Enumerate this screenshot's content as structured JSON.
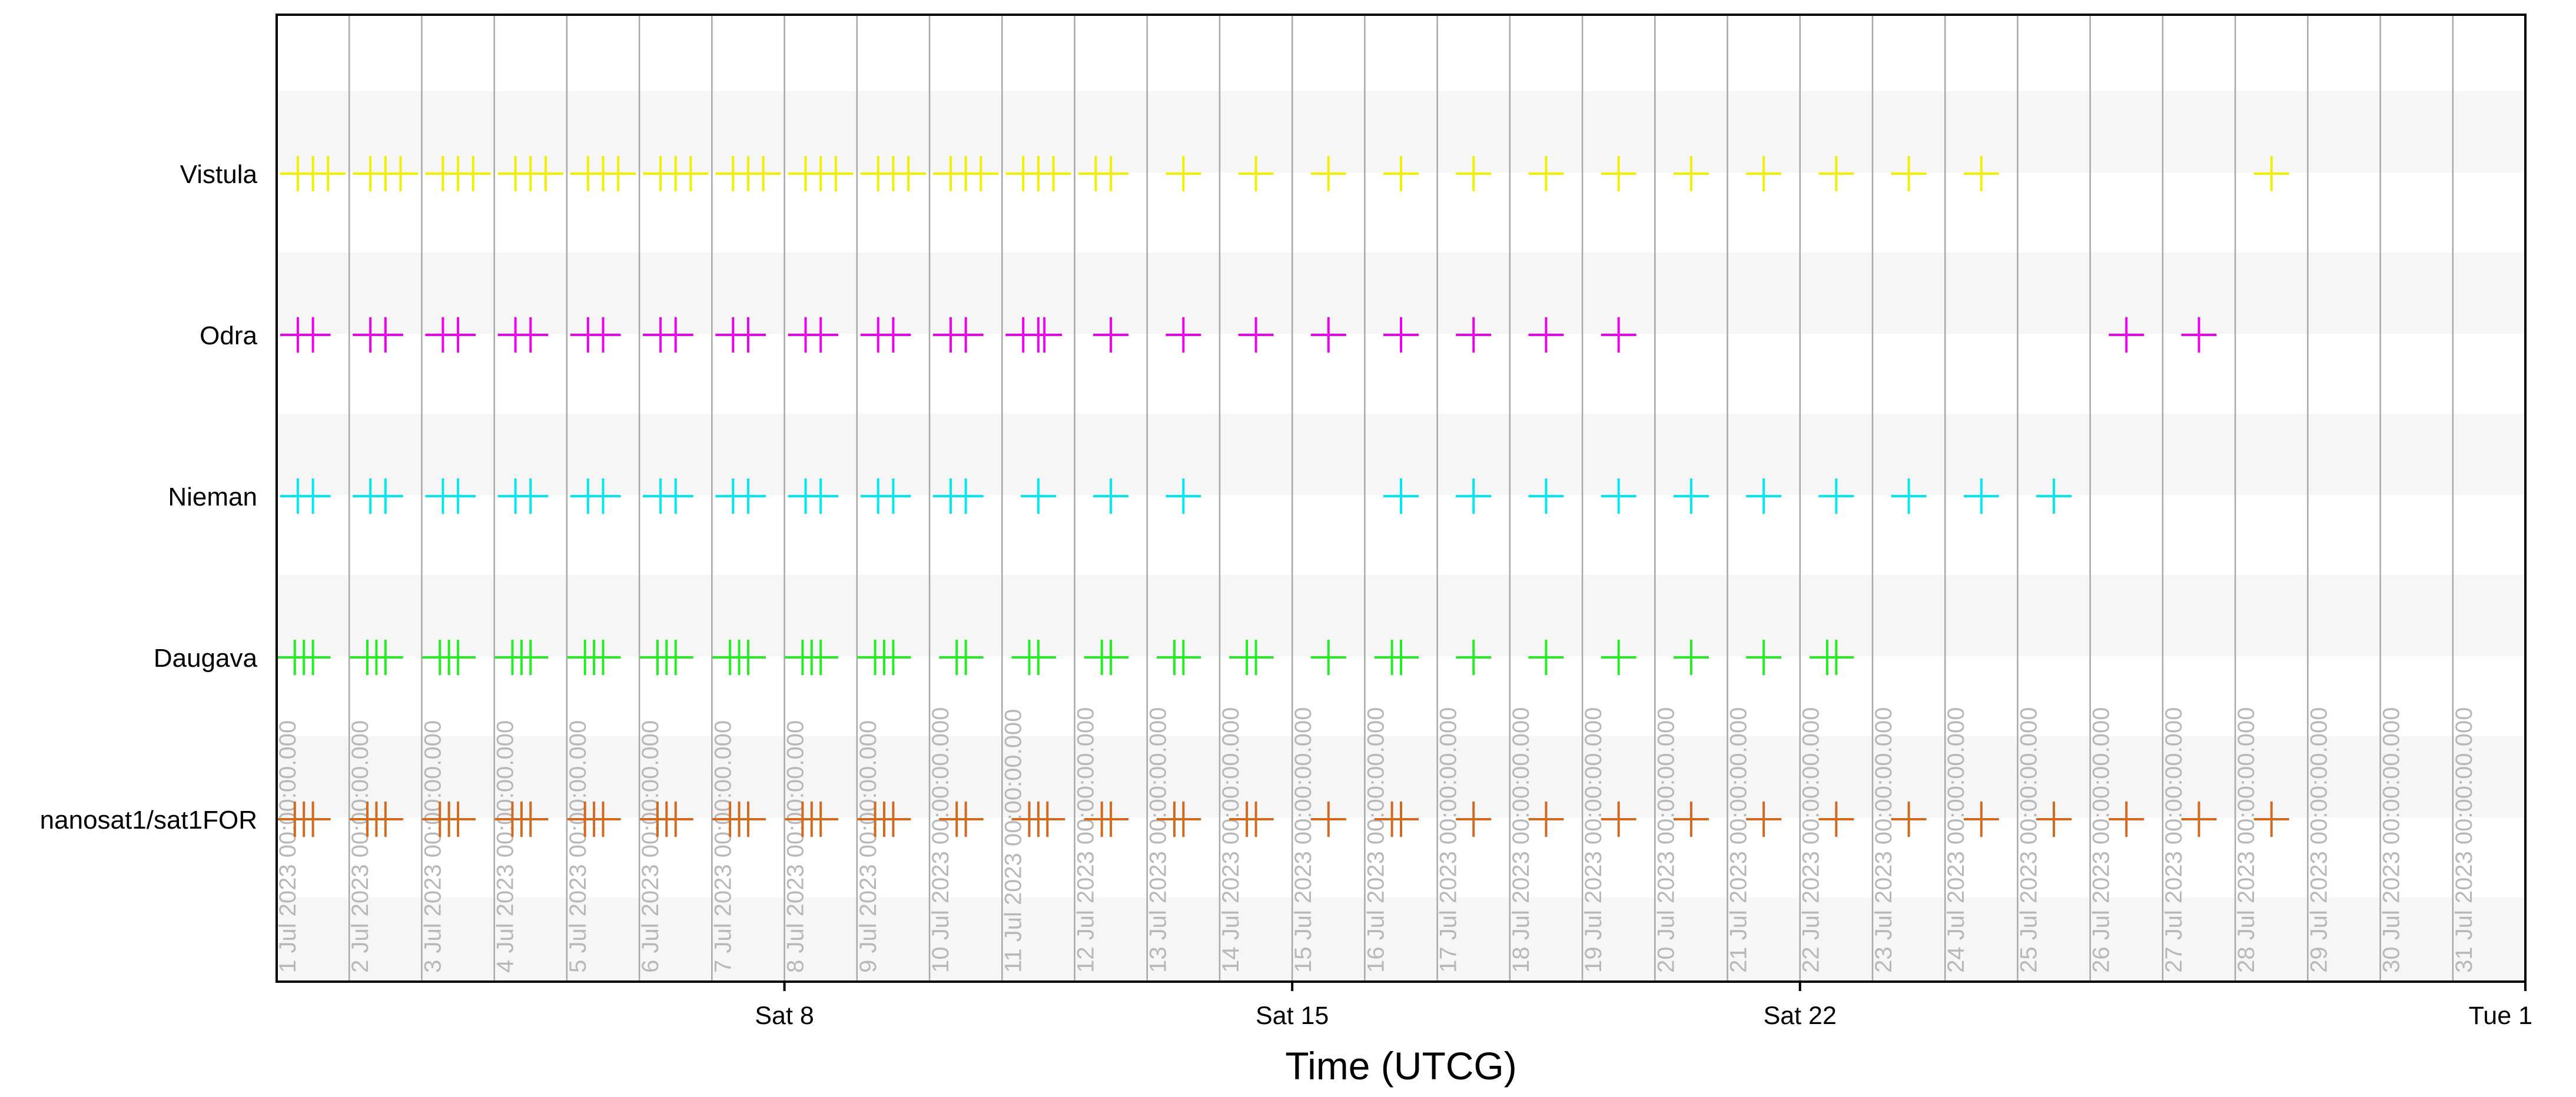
{
  "chart_data": {
    "type": "scatter",
    "xlabel": "Time (UTCG)",
    "x_range": [
      "2023-07-01",
      "2023-08-01"
    ],
    "x_ticks": [
      {
        "date": "2023-07-08",
        "label": "Sat 8"
      },
      {
        "date": "2023-07-15",
        "label": "Sat 15"
      },
      {
        "date": "2023-07-22",
        "label": "Sat 22"
      },
      {
        "date": "2023-08-01",
        "label": "Tue 1"
      }
    ],
    "day_labels": [
      "1 Jul 2023 00:00:00.000",
      "2 Jul 2023 00:00:00.000",
      "3 Jul 2023 00:00:00.000",
      "4 Jul 2023 00:00:00.000",
      "5 Jul 2023 00:00:00.000",
      "6 Jul 2023 00:00:00.000",
      "7 Jul 2023 00:00:00.000",
      "8 Jul 2023 00:00:00.000",
      "9 Jul 2023 00:00:00.000",
      "10 Jul 2023 00:00:00.000",
      "11 Jul 2023 00:00:00.000",
      "12 Jul 2023 00:00:00.000",
      "13 Jul 2023 00:00:00.000",
      "14 Jul 2023 00:00:00.000",
      "15 Jul 2023 00:00:00.000",
      "16 Jul 2023 00:00:00.000",
      "17 Jul 2023 00:00:00.000",
      "18 Jul 2023 00:00:00.000",
      "19 Jul 2023 00:00:00.000",
      "20 Jul 2023 00:00:00.000",
      "21 Jul 2023 00:00:00.000",
      "22 Jul 2023 00:00:00.000",
      "23 Jul 2023 00:00:00.000",
      "24 Jul 2023 00:00:00.000",
      "25 Jul 2023 00:00:00.000",
      "26 Jul 2023 00:00:00.000",
      "27 Jul 2023 00:00:00.000",
      "28 Jul 2023 00:00:00.000",
      "29 Jul 2023 00:00:00.000",
      "30 Jul 2023 00:00:00.000",
      "31 Jul 2023 00:00:00.000"
    ],
    "grid": true,
    "series": [
      {
        "name": "Vistula",
        "color": "#f0f000",
        "points": [
          "2023-07-01T07:00",
          "2023-07-01T12:00",
          "2023-07-01T17:00",
          "2023-07-02T07:00",
          "2023-07-02T12:00",
          "2023-07-02T17:00",
          "2023-07-03T07:00",
          "2023-07-03T12:00",
          "2023-07-03T17:00",
          "2023-07-04T07:00",
          "2023-07-04T12:00",
          "2023-07-04T17:00",
          "2023-07-05T07:00",
          "2023-07-05T12:00",
          "2023-07-05T17:00",
          "2023-07-06T07:00",
          "2023-07-06T12:00",
          "2023-07-06T17:00",
          "2023-07-07T07:00",
          "2023-07-07T12:00",
          "2023-07-07T17:00",
          "2023-07-08T07:00",
          "2023-07-08T12:00",
          "2023-07-08T17:00",
          "2023-07-09T07:00",
          "2023-07-09T12:00",
          "2023-07-09T17:00",
          "2023-07-10T07:00",
          "2023-07-10T12:00",
          "2023-07-10T17:00",
          "2023-07-11T07:00",
          "2023-07-11T12:00",
          "2023-07-11T17:00",
          "2023-07-12T07:00",
          "2023-07-12T12:00",
          "2023-07-13T12:00",
          "2023-07-14T12:00",
          "2023-07-15T12:00",
          "2023-07-16T12:00",
          "2023-07-17T12:00",
          "2023-07-18T12:00",
          "2023-07-19T12:00",
          "2023-07-20T12:00",
          "2023-07-21T12:00",
          "2023-07-22T12:00",
          "2023-07-23T12:00",
          "2023-07-24T12:00",
          "2023-07-28T12:00"
        ]
      },
      {
        "name": "Odra",
        "color": "#ee00ee",
        "points": [
          "2023-07-01T07:00",
          "2023-07-01T12:00",
          "2023-07-02T07:00",
          "2023-07-02T12:00",
          "2023-07-03T07:00",
          "2023-07-03T12:00",
          "2023-07-04T07:00",
          "2023-07-04T12:00",
          "2023-07-05T07:00",
          "2023-07-05T12:00",
          "2023-07-06T07:00",
          "2023-07-06T12:00",
          "2023-07-07T07:00",
          "2023-07-07T12:00",
          "2023-07-08T07:00",
          "2023-07-08T12:00",
          "2023-07-09T07:00",
          "2023-07-09T12:00",
          "2023-07-10T07:00",
          "2023-07-10T12:00",
          "2023-07-11T07:00",
          "2023-07-11T12:00",
          "2023-07-11T14:00",
          "2023-07-12T12:00",
          "2023-07-13T12:00",
          "2023-07-14T12:00",
          "2023-07-15T12:00",
          "2023-07-16T12:00",
          "2023-07-17T12:00",
          "2023-07-18T12:00",
          "2023-07-19T12:00",
          "2023-07-26T12:00",
          "2023-07-27T12:00"
        ]
      },
      {
        "name": "Nieman",
        "color": "#00e8f0",
        "points": [
          "2023-07-01T07:00",
          "2023-07-01T12:00",
          "2023-07-02T07:00",
          "2023-07-02T12:00",
          "2023-07-03T07:00",
          "2023-07-03T12:00",
          "2023-07-04T07:00",
          "2023-07-04T12:00",
          "2023-07-05T07:00",
          "2023-07-05T12:00",
          "2023-07-06T07:00",
          "2023-07-06T12:00",
          "2023-07-07T07:00",
          "2023-07-07T12:00",
          "2023-07-08T07:00",
          "2023-07-08T12:00",
          "2023-07-09T07:00",
          "2023-07-09T12:00",
          "2023-07-10T07:00",
          "2023-07-10T12:00",
          "2023-07-11T12:00",
          "2023-07-12T12:00",
          "2023-07-13T12:00",
          "2023-07-16T12:00",
          "2023-07-17T12:00",
          "2023-07-18T12:00",
          "2023-07-19T12:00",
          "2023-07-20T12:00",
          "2023-07-21T12:00",
          "2023-07-22T12:00",
          "2023-07-23T12:00",
          "2023-07-24T12:00",
          "2023-07-25T12:00"
        ]
      },
      {
        "name": "Daugava",
        "color": "#22ee22",
        "points": [
          "2023-07-01T06:00",
          "2023-07-01T09:00",
          "2023-07-01T12:00",
          "2023-07-02T06:00",
          "2023-07-02T09:00",
          "2023-07-02T12:00",
          "2023-07-03T06:00",
          "2023-07-03T09:00",
          "2023-07-03T12:00",
          "2023-07-04T06:00",
          "2023-07-04T09:00",
          "2023-07-04T12:00",
          "2023-07-05T06:00",
          "2023-07-05T09:00",
          "2023-07-05T12:00",
          "2023-07-06T06:00",
          "2023-07-06T09:00",
          "2023-07-06T12:00",
          "2023-07-07T06:00",
          "2023-07-07T09:00",
          "2023-07-07T12:00",
          "2023-07-08T06:00",
          "2023-07-08T09:00",
          "2023-07-08T12:00",
          "2023-07-09T06:00",
          "2023-07-09T09:00",
          "2023-07-09T12:00",
          "2023-07-10T09:00",
          "2023-07-10T12:00",
          "2023-07-11T09:00",
          "2023-07-11T12:00",
          "2023-07-12T09:00",
          "2023-07-12T12:00",
          "2023-07-13T09:00",
          "2023-07-13T12:00",
          "2023-07-14T09:00",
          "2023-07-14T12:00",
          "2023-07-15T12:00",
          "2023-07-16T09:00",
          "2023-07-16T12:00",
          "2023-07-17T12:00",
          "2023-07-18T12:00",
          "2023-07-19T12:00",
          "2023-07-20T12:00",
          "2023-07-21T12:00",
          "2023-07-22T09:00",
          "2023-07-22T12:00"
        ]
      },
      {
        "name": "nanosat1/sat1FOR",
        "color": "#d2691e",
        "points": [
          "2023-07-01T06:00",
          "2023-07-01T09:00",
          "2023-07-01T12:00",
          "2023-07-02T06:00",
          "2023-07-02T09:00",
          "2023-07-02T12:00",
          "2023-07-03T06:00",
          "2023-07-03T09:00",
          "2023-07-03T12:00",
          "2023-07-04T06:00",
          "2023-07-04T09:00",
          "2023-07-04T12:00",
          "2023-07-05T06:00",
          "2023-07-05T09:00",
          "2023-07-05T12:00",
          "2023-07-06T06:00",
          "2023-07-06T09:00",
          "2023-07-06T12:00",
          "2023-07-07T06:00",
          "2023-07-07T09:00",
          "2023-07-07T12:00",
          "2023-07-08T06:00",
          "2023-07-08T09:00",
          "2023-07-08T12:00",
          "2023-07-09T06:00",
          "2023-07-09T09:00",
          "2023-07-09T12:00",
          "2023-07-10T09:00",
          "2023-07-10T12:00",
          "2023-07-11T09:00",
          "2023-07-11T12:00",
          "2023-07-11T15:00",
          "2023-07-12T09:00",
          "2023-07-12T12:00",
          "2023-07-13T09:00",
          "2023-07-13T12:00",
          "2023-07-14T09:00",
          "2023-07-14T12:00",
          "2023-07-15T12:00",
          "2023-07-16T09:00",
          "2023-07-16T12:00",
          "2023-07-17T12:00",
          "2023-07-18T12:00",
          "2023-07-19T12:00",
          "2023-07-20T12:00",
          "2023-07-21T12:00",
          "2023-07-22T12:00",
          "2023-07-23T12:00",
          "2023-07-24T12:00",
          "2023-07-25T12:00",
          "2023-07-26T12:00",
          "2023-07-27T12:00",
          "2023-07-28T12:00"
        ]
      }
    ]
  }
}
